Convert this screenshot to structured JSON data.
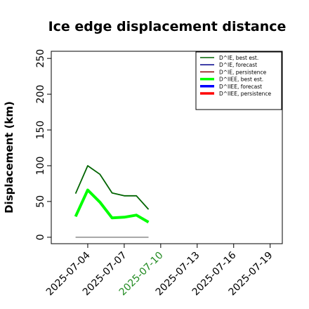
{
  "chart_data": {
    "type": "line",
    "title": "Ice edge displacement distance",
    "xlabel": "",
    "ylabel": "Displacement (km)",
    "x_ticks": [
      "2025-07-04",
      "2025-07-07",
      "2025-07-10",
      "2025-07-13",
      "2025-07-16",
      "2025-07-19"
    ],
    "highlight_tick": "2025-07-10",
    "highlight_color": "#228b22",
    "xlim": [
      "2025-07-01",
      "2025-07-20"
    ],
    "ylim": [
      -9,
      260
    ],
    "y_ticks": [
      0,
      50,
      100,
      150,
      200,
      250
    ],
    "grid": false,
    "legend_position": "top-right",
    "series": [
      {
        "name": "D^IE, best est.",
        "color": "#006400",
        "style": "thin",
        "x": [
          "2025-07-03",
          "2025-07-04",
          "2025-07-05",
          "2025-07-06",
          "2025-07-07",
          "2025-07-08",
          "2025-07-09"
        ],
        "values": [
          61,
          100,
          88,
          62,
          58,
          58,
          39
        ]
      },
      {
        "name": "D^IE, forecast",
        "color": "#00008b",
        "style": "thin",
        "x": [],
        "values": []
      },
      {
        "name": "D^IE, persistence",
        "color": "#8b0000",
        "style": "thin",
        "x": [],
        "values": []
      },
      {
        "name": "D^IIEE, best est.",
        "color": "#00ff00",
        "style": "thick",
        "x": [
          "2025-07-03",
          "2025-07-04",
          "2025-07-05",
          "2025-07-06",
          "2025-07-07",
          "2025-07-08",
          "2025-07-09"
        ],
        "values": [
          29,
          66,
          49,
          27,
          28,
          31,
          21
        ]
      },
      {
        "name": "D^IIEE, forecast",
        "color": "#0000ff",
        "style": "thick",
        "x": [],
        "values": []
      },
      {
        "name": "D^IIEE, persistence",
        "color": "#ff0000",
        "style": "thick",
        "x": [],
        "values": []
      }
    ],
    "reference_line": {
      "color": "#808080",
      "x": [
        "2025-07-03",
        "2025-07-09"
      ],
      "values": [
        0,
        0
      ]
    }
  }
}
